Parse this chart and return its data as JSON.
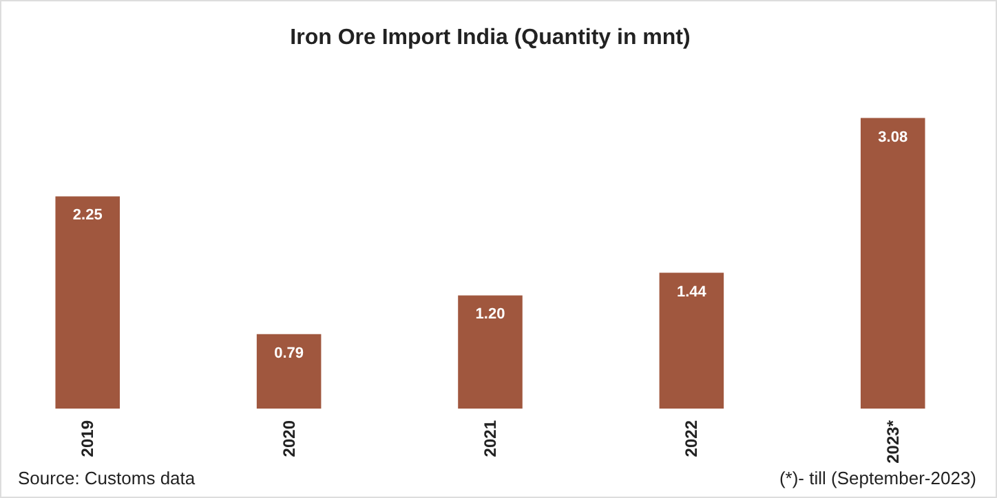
{
  "chart_data": {
    "type": "bar",
    "title": "Iron Ore Import India (Quantity in mnt)",
    "categories": [
      "2019",
      "2020",
      "2021",
      "2022",
      "2023*"
    ],
    "values": [
      2.25,
      0.79,
      1.2,
      1.44,
      3.08
    ],
    "value_labels": [
      "2.25",
      "0.79",
      "1.20",
      "1.44",
      "3.08"
    ],
    "color": "#a0573e",
    "annotations": [
      "Source: Customs data",
      "(*)- till (September-2023)"
    ]
  }
}
